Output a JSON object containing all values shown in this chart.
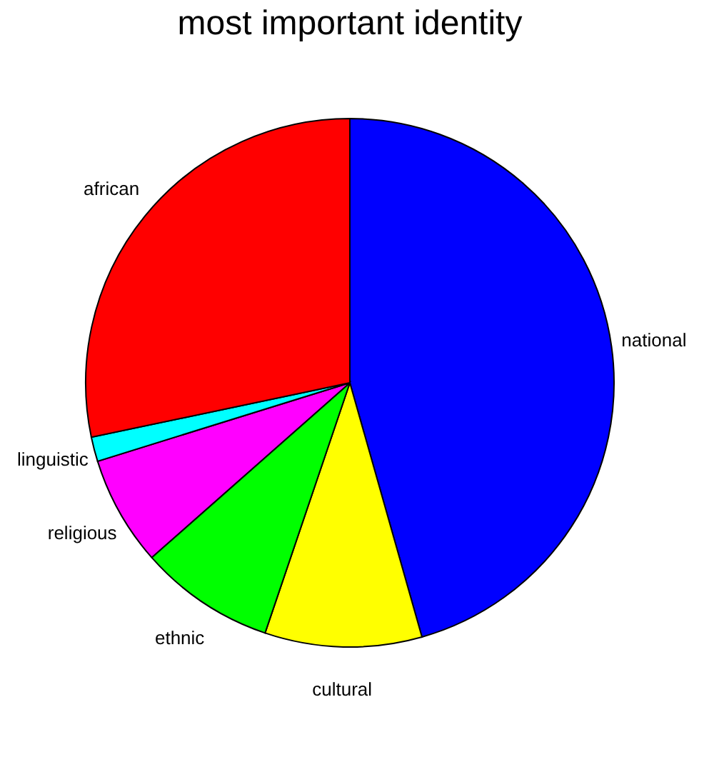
{
  "chart_data": {
    "type": "pie",
    "title": "most important identity",
    "categories": [
      "national",
      "cultural",
      "ethnic",
      "religious",
      "linguistic",
      "african"
    ],
    "values": [
      45.6,
      9.6,
      8.3,
      6.7,
      1.5,
      28.3
    ],
    "colors": [
      "#0000ff",
      "#ffff00",
      "#00ff00",
      "#ff00ff",
      "#00ffff",
      "#ff0000"
    ]
  }
}
